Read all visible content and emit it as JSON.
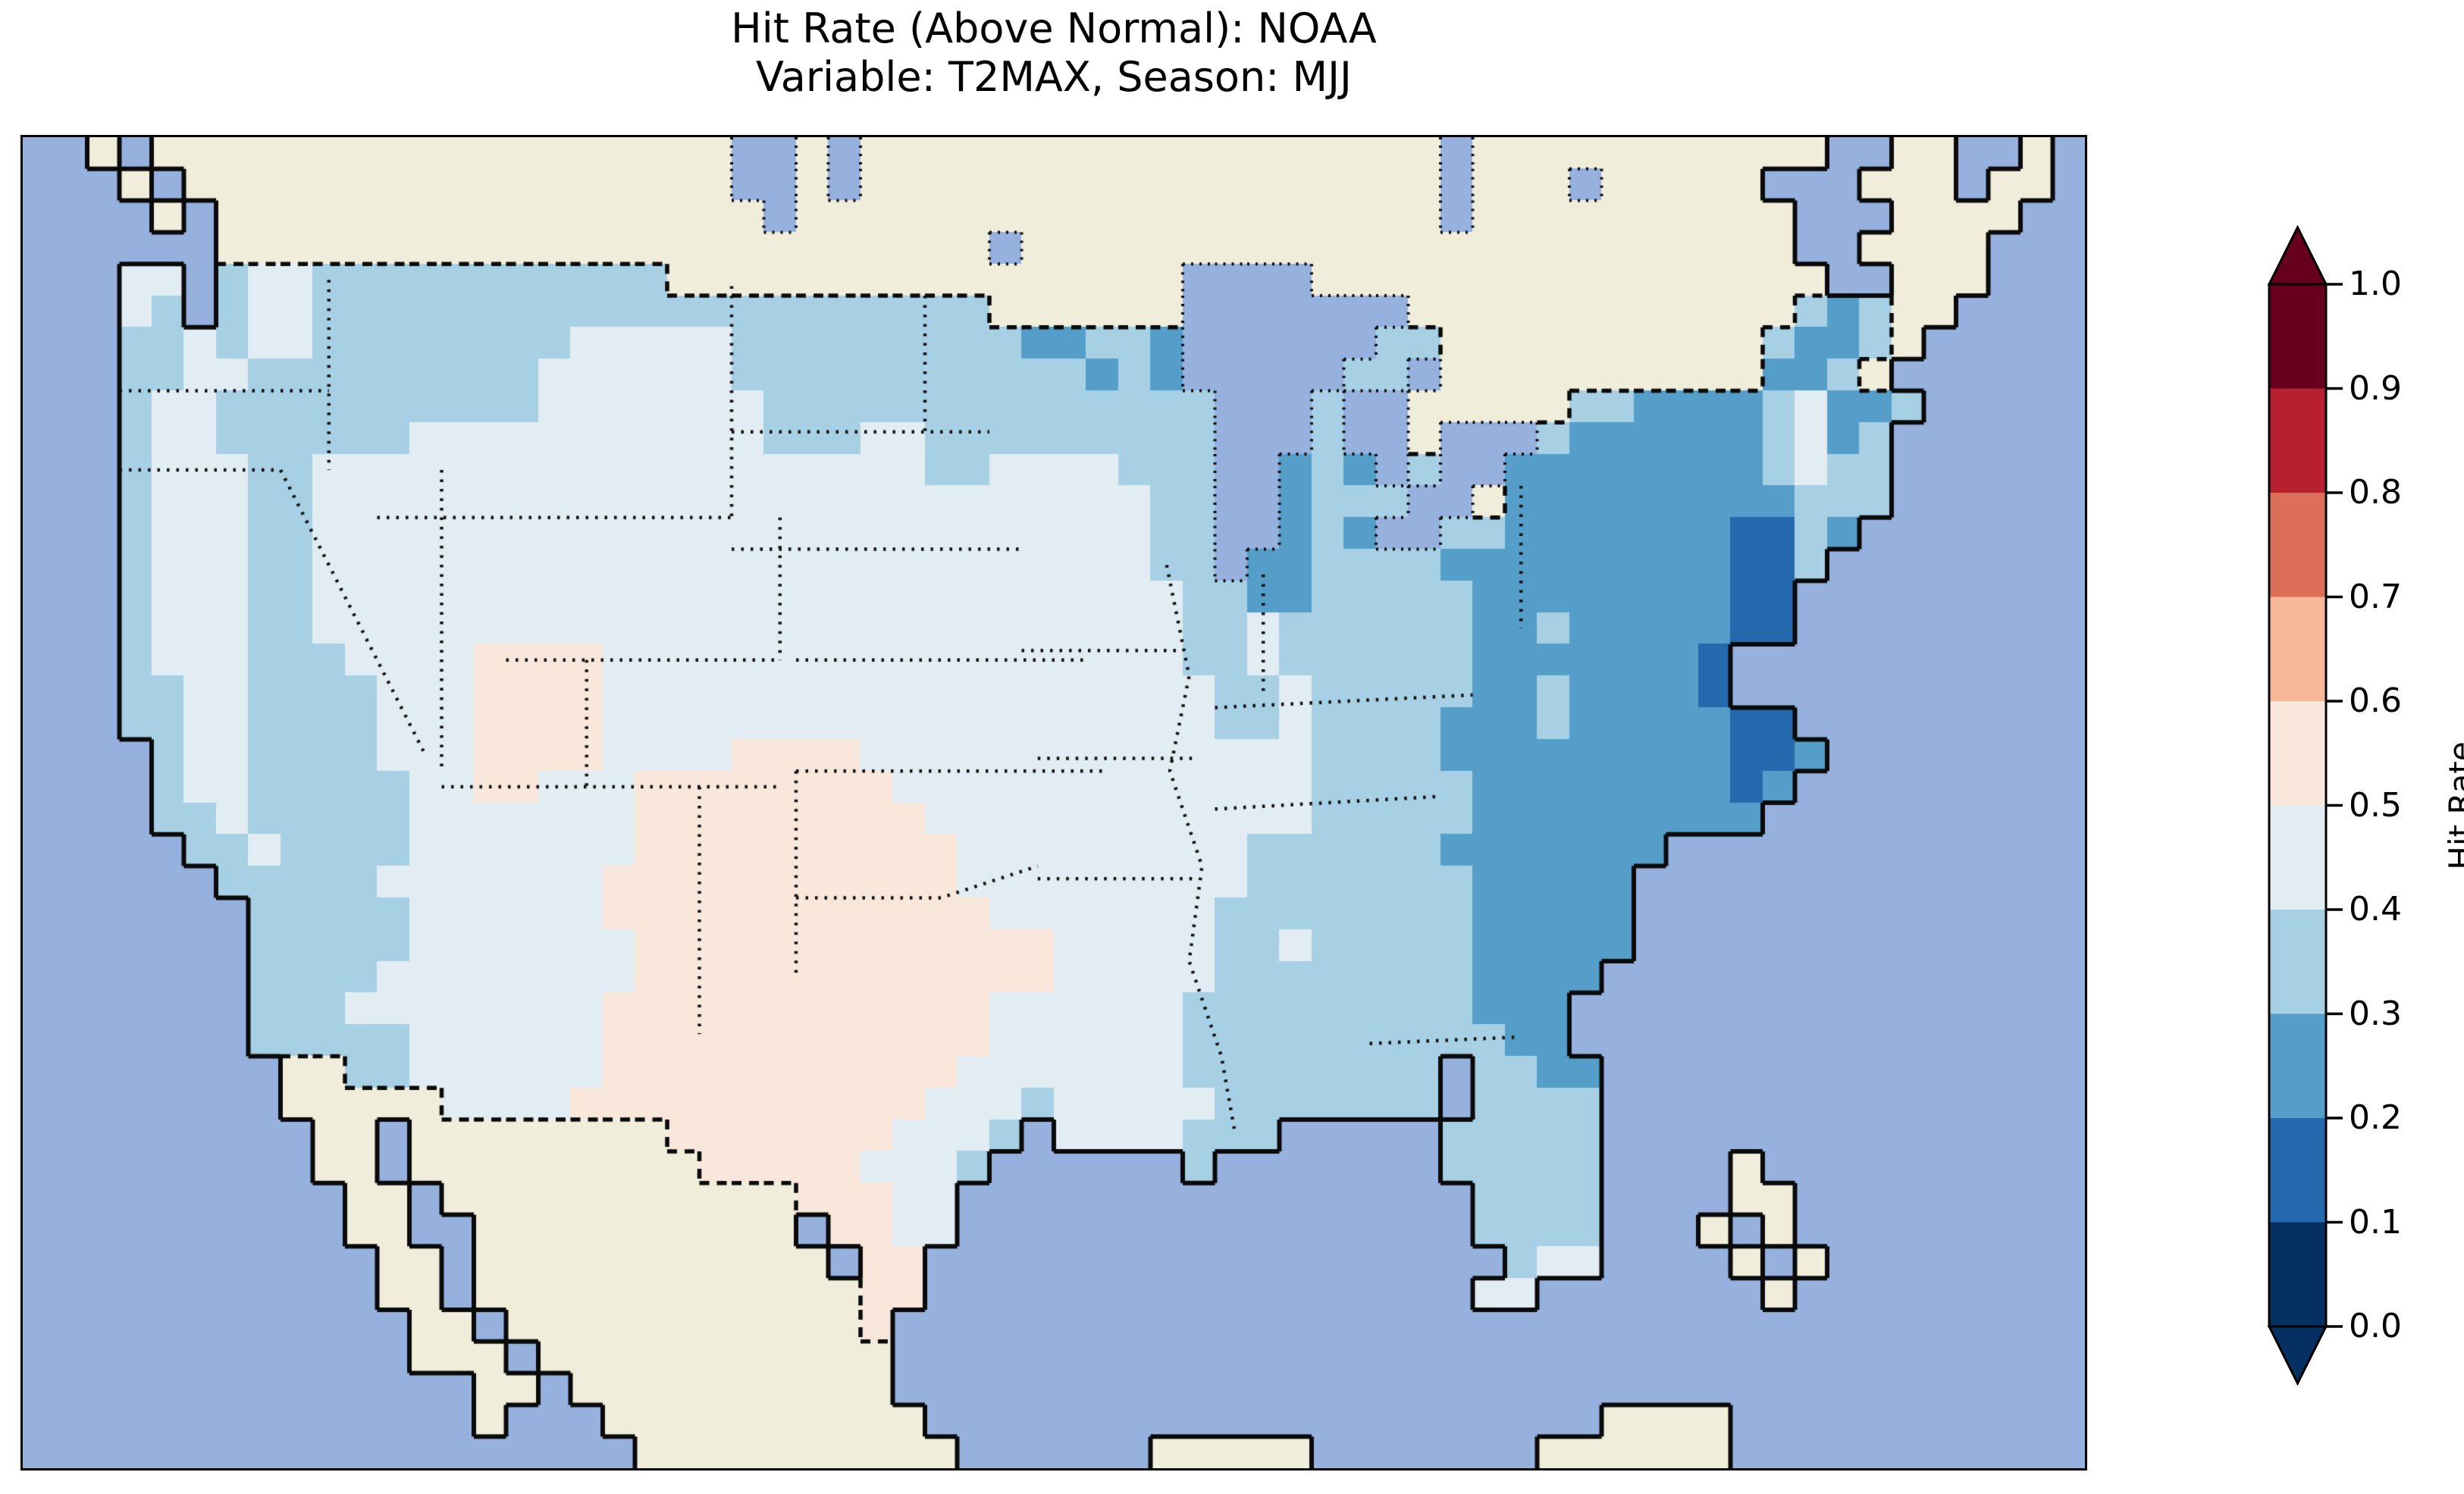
{
  "title": {
    "line1": "Hit Rate (Above Normal): NOAA",
    "line2": "Variable: T2MAX, Season: MJJ"
  },
  "colorbar": {
    "label": "Hit Rate",
    "ticks": [
      "1.0",
      "0.9",
      "0.8",
      "0.7",
      "0.6",
      "0.5",
      "0.4",
      "0.3",
      "0.2",
      "0.1",
      "0.0"
    ],
    "extend": "both",
    "over_color": "#67001f",
    "under_color": "#053061",
    "outline_color": "#000000"
  },
  "map": {
    "ocean_color": "#97b1df",
    "land_color": "#f0eedb",
    "lake_color": "#97b1df",
    "coast_color": "#0a0a0a",
    "border_dash_color": "#0a0a0a",
    "state_line_color": "#111111",
    "state_borders": [
      [
        [
          3,
          8
        ],
        [
          9.5,
          8
        ]
      ],
      [
        [
          3,
          10.5
        ],
        [
          8,
          10.5
        ]
      ],
      [
        [
          8,
          10.5
        ],
        [
          12.5,
          19.5
        ]
      ],
      [
        [
          9.5,
          4.5
        ],
        [
          9.5,
          10.5
        ]
      ],
      [
        [
          13,
          10.5
        ],
        [
          13,
          20
        ]
      ],
      [
        [
          11,
          12
        ],
        [
          22,
          12
        ]
      ],
      [
        [
          15,
          16.5
        ],
        [
          23.5,
          16.5
        ]
      ],
      [
        [
          13,
          20.5
        ],
        [
          23.5,
          20.5
        ]
      ],
      [
        [
          17.5,
          16.5
        ],
        [
          17.5,
          20.5
        ]
      ],
      [
        [
          22,
          4.7
        ],
        [
          22,
          12
        ]
      ],
      [
        [
          22,
          9.3
        ],
        [
          30,
          9.3
        ]
      ],
      [
        [
          22,
          13
        ],
        [
          31,
          13
        ]
      ],
      [
        [
          24,
          16.5
        ],
        [
          33,
          16.5
        ]
      ],
      [
        [
          24,
          20
        ],
        [
          33.5,
          20
        ]
      ],
      [
        [
          24,
          20
        ],
        [
          24,
          26.5
        ]
      ],
      [
        [
          24,
          24
        ],
        [
          28.5,
          24
        ],
        [
          31.5,
          23
        ]
      ],
      [
        [
          21,
          20.5
        ],
        [
          21,
          28.3
        ]
      ],
      [
        [
          23.5,
          12
        ],
        [
          23.5,
          16.5
        ]
      ],
      [
        [
          28,
          5
        ],
        [
          28,
          9.3
        ]
      ],
      [
        [
          31,
          16.2
        ],
        [
          35.8,
          16.2
        ]
      ],
      [
        [
          31.5,
          19.6
        ],
        [
          36.3,
          19.6
        ]
      ],
      [
        [
          31.5,
          23.4
        ],
        [
          36.5,
          23.4
        ]
      ],
      [
        [
          35.5,
          13.5
        ],
        [
          36.2,
          17
        ],
        [
          35.6,
          20
        ],
        [
          36.6,
          23
        ],
        [
          36.2,
          26
        ],
        [
          37.2,
          29
        ],
        [
          37.6,
          31.3
        ]
      ],
      [
        [
          38.5,
          13.8
        ],
        [
          38.5,
          17.5
        ]
      ],
      [
        [
          37,
          18
        ],
        [
          45,
          17.6
        ]
      ],
      [
        [
          37,
          21.2
        ],
        [
          44,
          20.8
        ]
      ],
      [
        [
          46.5,
          11
        ],
        [
          46.5,
          15.5
        ]
      ],
      [
        [
          41.8,
          28.6
        ],
        [
          46.3,
          28.4
        ]
      ]
    ]
  },
  "chart_data": {
    "type": "heatmap",
    "title": "Hit Rate (Above Normal): NOAA",
    "subtitle": "Variable: T2MAX, Season: MJJ",
    "metric": "Hit Rate (Above Normal)",
    "dataset": "NOAA",
    "variable": "T2MAX",
    "season": "MJJ",
    "colorbar_range": [
      0.0,
      1.0
    ],
    "bins": [
      0.0,
      0.1,
      0.2,
      0.3,
      0.4,
      0.5,
      0.6,
      0.7,
      0.8,
      0.9,
      1.0
    ],
    "bin_colors": [
      "#053061",
      "#2569ae",
      "#549ec9",
      "#a7d0e4",
      "#e2edf3",
      "#fae7dc",
      "#f7b799",
      "#dd6f59",
      "#b6202f",
      "#67001f"
    ],
    "observed_value_range_on_map": [
      0.1,
      0.6
    ],
    "regional_pattern": [
      "Lowest hit rates (0.1-0.2) in small dark-blue pockets on the New Jersey / Delmarva / Chesapeake coast",
      "0.2-0.3 over the Mid-Atlantic and Carolinas coastal plain, upstate New York, central Maine, northern Minnesota and Lake Michigan shores",
      "0.3-0.4 over the Pacific Northwest, California coast, northern Rockies and Plains, Great Lakes states, Appalachians, Gulf coast states and Florida",
      "0.4-0.5 (very pale blue) over the Great Basin, central Plains, Midwest and lower Mississippi valley",
      "0.5-0.6 (pale orange, above 0.5) over west/central Texas, eastern New Mexico and the Four Corners (eastern Utah / western Colorado)"
    ],
    "grid": {
      "cols": 64,
      "rows": 42,
      "legend": {
        "~": "ocean",
        "C": "non-US land (no data)",
        "k": "lake",
        "1": "hit rate 0.1-0.2",
        "2": "hit rate 0.2-0.3",
        "3": "hit rate 0.3-0.4",
        "4": "hit rate 0.4-0.5",
        "5": "hit rate 0.5-0.6"
      },
      "cells": [
        "~~C~CCCCCCCCCCCCCCCCCCkkCkCCCCCCCCCCCCCCCCCCkCCCCCCCCCCC~~CC~~C~",
        "~~~C~CCCCCCCCCCCCCCCCCkkCkCCCCCCCCCCCCCCCCCCkCCCkCCCCC~~~CCC~CC~",
        "~~~~C~CCCCCCCCCCCCCCCCCkCCCCCCCCCCCCCCCCCCCCkCCCCCCCCCC~~~CCCC~~",
        "~~~~~~CCCCCCCCCCCCCCCCCCCCCCCCkCCCCCCCCCCCCCCCCCCCCCCCC~~CCCC~~~",
        "~~~44~34433333333333CCCCCCCCCCCCCCCCkkkkCCCCCCCCCCCCCCCC~~CCC~~~",
        "~~~43~344333333333333333333333CCCCCCkkkkkkkCCCCCCCCCCCC323CC~~~~",
        "~~~33434433333333444443333333332 2332kkkkkk33CCCCCCCCCC3223C~~~~~",
        "~~~334433333333344444433333333333232kkkkk33kCCCCCCCCCC2 23C~~~~~",
        "~~~34433333333334444444333333333 33333kkk3kkCCCCC33222234223~~~~~",
        "~~~34433333344444444444333443333 33333kkk3kkCkkk32222223423~~~~~~",
        "~~~34443344444444444444444443344 44333kk232k3kk222222223433~~~~~~",
        "~~~34443344444444444444444444444 44433kk2333kkC2222222223 33~~~~~~",
        "~~~34443344444444444444444444444 44433kk232kk332222222113 2~~~~~~~",
        "~~~34443344444444444444444444444 44433k2233332222222221 13~~~~~~~~",
        "~~~34443344444444444444444444444 4444332233333222222221 1~~~~~~~~~",
        "~~~34443344444444444444444444444 4444334333333223222221 1~~~~~~~~~",
        "~~~34443334444555544444444444444 44443343333332222222 1~~~~~~~~~~",
        "~~~33443333444555544444444444444 44444334333332232222 1~~~~~~~~~~",
        "~~~33443333444555544444444444444 44444334333322232222211~~~~~~~~",
        "~~~~3443333444555544445555444444 44444444333322222222 2112~~~~~~~",
        "~~~~3443333344554445555555544444 44444444333332222222212~~~~~~~~",
        "~~~~3343333344444445555555554444 44444444333332222222 22~~~~~~~~~",
        "~~~~~334333344444445555555555444 444444333333222 2222~~~~~~~~~~~",
        "~~~~~~333334444444555555555554444444443333333222 22~~~~~~~~~~~~",
        "~~~~~~~3333344444455555555555544 44444333333332222 2~~~~~~~~~~~~",
        "~~~~~~~3333344444445555555555555 44444334333332222 2~~~~~~~~~~~~",
        "~~~~~~~3333444444445555555555555 44444333333332222~~~~~~~~~~~~~",
        "~~~~~~~3334444444455555555555544 44443333333332 22~~~~~~~~~~~~~~",
        "~~~~~~~3333344444455555555555544 4444333333333322~~~~~~~~~~~~~~",
        "~~~~~~~~CC3344444455555555555444 444433333333~3322~~~~~~~~~~~~~",
        "~~~~~~~~CCCCC444455555555555444344444333 3333~3333~~~~~~~~~~~~~",
        "~~~~~~~~~CC~CCCCCCCC55555554443~4444333~~~~~33333~~~~~~~~~~~~~~",
        "~~~~~~~~~CC~CCCCCCCCC555554443~~~~~~3~~~~~~~33333~~~~C~~~~~~~~~",
        "~~~~~~~~~~CC~CCCCCCCCCCC55544~~~~~~~~~~~~~~~~3333~~~~CC~~~~~~~~",
        "~~~~~~~~~~CC~~CCCCCCCCCC~5544~~~~~~~~~~~~~~~~3333~~~C~C~~~~~~~~",
        "~~~~~~~~~~~CC~CCCCCCCCCCC~55~~~~~~~~~~~~~~~~~~344~~~~C~C~~~~~~~",
        "~~~~~~~~~~~CC~CCCCCCCCCCCC55~~~~~~~~~~~~~~~~~44~~~~~~~C~~~~~~~~",
        "~~~~~~~~~~~~CC~CCCCCCCCCCC5~~~~~~~~~~~~~~~~~~~~~~~~~~~~~~~~~~~~",
        "~~~~~~~~~~~~CCC~CCCCCCCCCCC~~~~~~~~~~~~~~~~~~~~~~~~~~~~~~~~~~~~",
        "~~~~~~~~~~~~~~CC~CCCCCCCCCC~~~~~~~~~~~~~~~~~~~~~~~~~~~~~~~~~~~~",
        "~~~~~~~~~~~~~~C~~~CCCCCCCCCC~~~~~~~~~~~~~~~~~~~~~CCCC~~~~~~~~~~",
        "~~~~~~~~~~~~~~~~~~~CCCCCCCCCC~~~~~~CCCCC~~~~~~~CCCCCC~~~~~~~~~~"
      ]
    }
  }
}
